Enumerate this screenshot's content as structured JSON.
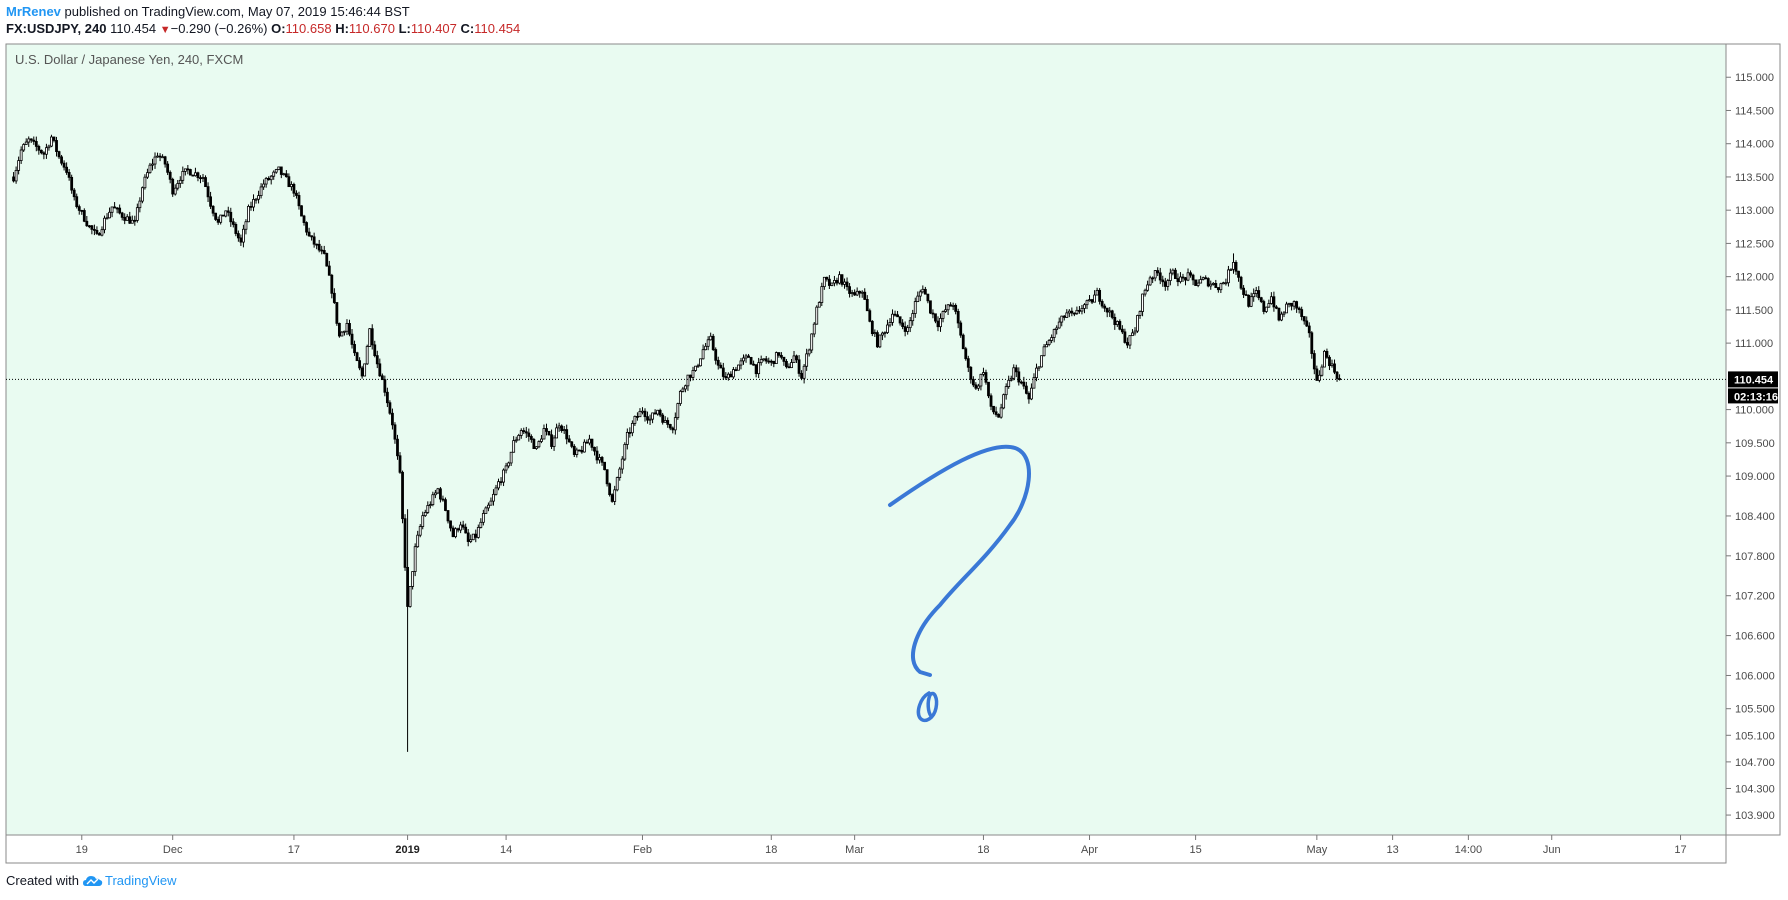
{
  "header": {
    "author": "MrRenev",
    "published_text": "published on TradingView.com, May 07, 2019 15:46:44 BST",
    "symbol": "FX:USDJPY, 240",
    "last": "110.454",
    "change_arrow": "▼",
    "change": "−0.290 (−0.26%)",
    "open_label": "O:",
    "open": "110.658",
    "high_label": "H:",
    "high": "110.670",
    "low_label": "L:",
    "low": "110.407",
    "close_label": "C:",
    "close": "110.454"
  },
  "footer": {
    "created_with": "Created with",
    "brand": "TradingView"
  },
  "colors": {
    "plot_background": "#e9fbf1",
    "candle": "#000000",
    "drawing": "#3a78d6",
    "price_tag_bg": "#000000",
    "brand": "#2196f3",
    "negative": "#c62828"
  },
  "chart_data": {
    "type": "candlestick",
    "title": "U.S. Dollar / Japanese Yen, 240, FXCM",
    "y_axis_position": "right",
    "ylim": [
      103.6,
      115.5
    ],
    "y_ticks": [
      {
        "value": 115.0,
        "label": "115.000"
      },
      {
        "value": 114.5,
        "label": "114.500"
      },
      {
        "value": 114.0,
        "label": "114.000"
      },
      {
        "value": 113.5,
        "label": "113.500"
      },
      {
        "value": 113.0,
        "label": "113.000"
      },
      {
        "value": 112.5,
        "label": "112.500"
      },
      {
        "value": 112.0,
        "label": "112.000"
      },
      {
        "value": 111.5,
        "label": "111.500"
      },
      {
        "value": 111.0,
        "label": "111.000"
      },
      {
        "value": 110.0,
        "label": "110.000"
      },
      {
        "value": 109.5,
        "label": "109.500"
      },
      {
        "value": 109.0,
        "label": "109.000"
      },
      {
        "value": 108.4,
        "label": "108.400"
      },
      {
        "value": 107.8,
        "label": "107.800"
      },
      {
        "value": 107.2,
        "label": "107.200"
      },
      {
        "value": 106.6,
        "label": "106.600"
      },
      {
        "value": 106.0,
        "label": "106.000"
      },
      {
        "value": 105.5,
        "label": "105.500"
      },
      {
        "value": 105.1,
        "label": "105.100"
      },
      {
        "value": 104.7,
        "label": "104.700"
      },
      {
        "value": 104.3,
        "label": "104.300"
      },
      {
        "value": 103.9,
        "label": "103.900"
      }
    ],
    "x_ticks": [
      {
        "day": 9,
        "label": "19",
        "bold": false
      },
      {
        "day": 21,
        "label": "Dec",
        "bold": false
      },
      {
        "day": 37,
        "label": "17",
        "bold": false
      },
      {
        "day": 52,
        "label": "2019",
        "bold": true
      },
      {
        "day": 65,
        "label": "14",
        "bold": false
      },
      {
        "day": 83,
        "label": "Feb",
        "bold": false
      },
      {
        "day": 100,
        "label": "18",
        "bold": false
      },
      {
        "day": 111,
        "label": "Mar",
        "bold": false
      },
      {
        "day": 128,
        "label": "18",
        "bold": false
      },
      {
        "day": 142,
        "label": "Apr",
        "bold": false
      },
      {
        "day": 156,
        "label": "15",
        "bold": false
      },
      {
        "day": 172,
        "label": "May",
        "bold": false
      },
      {
        "day": 182,
        "label": "13",
        "bold": false
      },
      {
        "day": 192,
        "label": "14:00",
        "bold": false
      },
      {
        "day": 203,
        "label": "Jun",
        "bold": false
      },
      {
        "day": 220,
        "label": "17",
        "bold": false
      }
    ],
    "xlim": [
      -1,
      226
    ],
    "keypoints": [
      {
        "day": 0,
        "price": 113.5
      },
      {
        "day": 1,
        "price": 113.9
      },
      {
        "day": 2,
        "price": 114.05
      },
      {
        "day": 4,
        "price": 113.85
      },
      {
        "day": 5,
        "price": 114.1
      },
      {
        "day": 6,
        "price": 113.8
      },
      {
        "day": 7,
        "price": 113.6
      },
      {
        "day": 8,
        "price": 113.15
      },
      {
        "day": 10,
        "price": 112.75
      },
      {
        "day": 11,
        "price": 112.6
      },
      {
        "day": 12,
        "price": 112.85
      },
      {
        "day": 13,
        "price": 113.05
      },
      {
        "day": 14,
        "price": 112.95
      },
      {
        "day": 16,
        "price": 112.8
      },
      {
        "day": 17,
        "price": 113.35
      },
      {
        "day": 18,
        "price": 113.65
      },
      {
        "day": 19,
        "price": 113.85
      },
      {
        "day": 20,
        "price": 113.7
      },
      {
        "day": 21,
        "price": 113.3
      },
      {
        "day": 22,
        "price": 113.5
      },
      {
        "day": 23,
        "price": 113.6
      },
      {
        "day": 25,
        "price": 113.5
      },
      {
        "day": 26,
        "price": 113.1
      },
      {
        "day": 27,
        "price": 112.8
      },
      {
        "day": 28,
        "price": 113.0
      },
      {
        "day": 29,
        "price": 112.75
      },
      {
        "day": 30,
        "price": 112.5
      },
      {
        "day": 31,
        "price": 113.0
      },
      {
        "day": 32,
        "price": 113.2
      },
      {
        "day": 33,
        "price": 113.4
      },
      {
        "day": 35,
        "price": 113.6
      },
      {
        "day": 36,
        "price": 113.45
      },
      {
        "day": 37,
        "price": 113.3
      },
      {
        "day": 38,
        "price": 112.9
      },
      {
        "day": 39,
        "price": 112.6
      },
      {
        "day": 40,
        "price": 112.45
      },
      {
        "day": 41,
        "price": 112.3
      },
      {
        "day": 42,
        "price": 111.8
      },
      {
        "day": 43,
        "price": 111.1
      },
      {
        "day": 44,
        "price": 111.3
      },
      {
        "day": 45,
        "price": 110.8
      },
      {
        "day": 46,
        "price": 110.5
      },
      {
        "day": 47,
        "price": 111.2
      },
      {
        "day": 48,
        "price": 110.7
      },
      {
        "day": 49,
        "price": 110.3
      },
      {
        "day": 50,
        "price": 109.8
      },
      {
        "day": 51,
        "price": 109.0
      },
      {
        "day": 52,
        "price": 107.0
      },
      {
        "day": 53,
        "price": 107.9
      },
      {
        "day": 54,
        "price": 108.4
      },
      {
        "day": 55,
        "price": 108.6
      },
      {
        "day": 56,
        "price": 108.8
      },
      {
        "day": 57,
        "price": 108.5
      },
      {
        "day": 58,
        "price": 108.1
      },
      {
        "day": 59,
        "price": 108.3
      },
      {
        "day": 60,
        "price": 108.0
      },
      {
        "day": 61,
        "price": 108.1
      },
      {
        "day": 62,
        "price": 108.4
      },
      {
        "day": 63,
        "price": 108.6
      },
      {
        "day": 64,
        "price": 108.9
      },
      {
        "day": 65,
        "price": 109.1
      },
      {
        "day": 66,
        "price": 109.5
      },
      {
        "day": 67,
        "price": 109.7
      },
      {
        "day": 68,
        "price": 109.6
      },
      {
        "day": 69,
        "price": 109.4
      },
      {
        "day": 70,
        "price": 109.7
      },
      {
        "day": 71,
        "price": 109.5
      },
      {
        "day": 72,
        "price": 109.8
      },
      {
        "day": 73,
        "price": 109.6
      },
      {
        "day": 74,
        "price": 109.3
      },
      {
        "day": 75,
        "price": 109.4
      },
      {
        "day": 76,
        "price": 109.55
      },
      {
        "day": 77,
        "price": 109.3
      },
      {
        "day": 78,
        "price": 109.1
      },
      {
        "day": 79,
        "price": 108.6
      },
      {
        "day": 80,
        "price": 109.1
      },
      {
        "day": 81,
        "price": 109.6
      },
      {
        "day": 82,
        "price": 109.85
      },
      {
        "day": 83,
        "price": 110.0
      },
      {
        "day": 84,
        "price": 109.85
      },
      {
        "day": 85,
        "price": 110.0
      },
      {
        "day": 86,
        "price": 109.8
      },
      {
        "day": 87,
        "price": 109.75
      },
      {
        "day": 88,
        "price": 110.25
      },
      {
        "day": 89,
        "price": 110.5
      },
      {
        "day": 90,
        "price": 110.6
      },
      {
        "day": 91,
        "price": 110.9
      },
      {
        "day": 92,
        "price": 111.05
      },
      {
        "day": 93,
        "price": 110.65
      },
      {
        "day": 94,
        "price": 110.45
      },
      {
        "day": 95,
        "price": 110.6
      },
      {
        "day": 96,
        "price": 110.7
      },
      {
        "day": 97,
        "price": 110.8
      },
      {
        "day": 98,
        "price": 110.6
      },
      {
        "day": 99,
        "price": 110.75
      },
      {
        "day": 100,
        "price": 110.7
      },
      {
        "day": 101,
        "price": 110.85
      },
      {
        "day": 102,
        "price": 110.6
      },
      {
        "day": 103,
        "price": 110.8
      },
      {
        "day": 104,
        "price": 110.5
      },
      {
        "day": 105,
        "price": 110.95
      },
      {
        "day": 106,
        "price": 111.5
      },
      {
        "day": 107,
        "price": 111.95
      },
      {
        "day": 108,
        "price": 111.85
      },
      {
        "day": 109,
        "price": 112.0
      },
      {
        "day": 110,
        "price": 111.8
      },
      {
        "day": 111,
        "price": 111.7
      },
      {
        "day": 112,
        "price": 111.8
      },
      {
        "day": 113,
        "price": 111.3
      },
      {
        "day": 114,
        "price": 111.0
      },
      {
        "day": 115,
        "price": 111.2
      },
      {
        "day": 116,
        "price": 111.45
      },
      {
        "day": 117,
        "price": 111.3
      },
      {
        "day": 118,
        "price": 111.2
      },
      {
        "day": 119,
        "price": 111.6
      },
      {
        "day": 120,
        "price": 111.85
      },
      {
        "day": 121,
        "price": 111.5
      },
      {
        "day": 122,
        "price": 111.3
      },
      {
        "day": 123,
        "price": 111.5
      },
      {
        "day": 124,
        "price": 111.6
      },
      {
        "day": 125,
        "price": 111.1
      },
      {
        "day": 126,
        "price": 110.6
      },
      {
        "day": 127,
        "price": 110.3
      },
      {
        "day": 128,
        "price": 110.6
      },
      {
        "day": 129,
        "price": 110.0
      },
      {
        "day": 130,
        "price": 109.9
      },
      {
        "day": 131,
        "price": 110.3
      },
      {
        "day": 132,
        "price": 110.6
      },
      {
        "day": 133,
        "price": 110.4
      },
      {
        "day": 134,
        "price": 110.15
      },
      {
        "day": 135,
        "price": 110.6
      },
      {
        "day": 136,
        "price": 110.9
      },
      {
        "day": 137,
        "price": 111.1
      },
      {
        "day": 138,
        "price": 111.3
      },
      {
        "day": 139,
        "price": 111.45
      },
      {
        "day": 140,
        "price": 111.4
      },
      {
        "day": 141,
        "price": 111.55
      },
      {
        "day": 142,
        "price": 111.6
      },
      {
        "day": 143,
        "price": 111.75
      },
      {
        "day": 144,
        "price": 111.55
      },
      {
        "day": 145,
        "price": 111.4
      },
      {
        "day": 146,
        "price": 111.2
      },
      {
        "day": 147,
        "price": 111.0
      },
      {
        "day": 148,
        "price": 111.2
      },
      {
        "day": 149,
        "price": 111.7
      },
      {
        "day": 150,
        "price": 112.0
      },
      {
        "day": 151,
        "price": 112.05
      },
      {
        "day": 152,
        "price": 111.9
      },
      {
        "day": 153,
        "price": 112.05
      },
      {
        "day": 154,
        "price": 111.95
      },
      {
        "day": 155,
        "price": 112.0
      },
      {
        "day": 156,
        "price": 111.9
      },
      {
        "day": 157,
        "price": 111.95
      },
      {
        "day": 158,
        "price": 111.9
      },
      {
        "day": 159,
        "price": 111.85
      },
      {
        "day": 160,
        "price": 111.95
      },
      {
        "day": 161,
        "price": 112.25
      },
      {
        "day": 162,
        "price": 111.85
      },
      {
        "day": 163,
        "price": 111.6
      },
      {
        "day": 164,
        "price": 111.75
      },
      {
        "day": 165,
        "price": 111.5
      },
      {
        "day": 166,
        "price": 111.7
      },
      {
        "day": 167,
        "price": 111.35
      },
      {
        "day": 168,
        "price": 111.55
      },
      {
        "day": 169,
        "price": 111.6
      },
      {
        "day": 170,
        "price": 111.4
      },
      {
        "day": 171,
        "price": 111.1
      },
      {
        "day": 172,
        "price": 110.4
      },
      {
        "day": 173,
        "price": 110.85
      },
      {
        "day": 174,
        "price": 110.65
      },
      {
        "day": 175,
        "price": 110.45
      }
    ],
    "candles_per_day": 3,
    "current_price": 110.454,
    "current_price_label": "110.454",
    "countdown_label": "02:13:16",
    "annotation": "hand-drawn question mark"
  }
}
